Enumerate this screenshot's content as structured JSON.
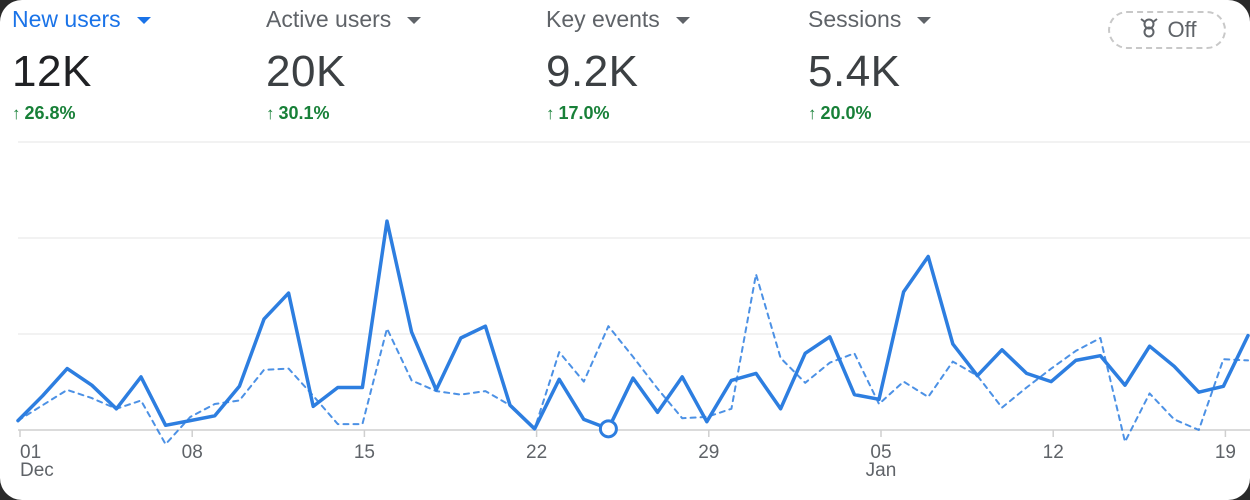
{
  "metrics": [
    {
      "label": "New users",
      "value": "12K",
      "change": "26.8%",
      "active": true
    },
    {
      "label": "Active users",
      "value": "20K",
      "change": "30.1%",
      "active": false
    },
    {
      "label": "Key events",
      "value": "9.2K",
      "change": "17.0%",
      "active": false
    },
    {
      "label": "Sessions",
      "value": "5.4K",
      "change": "20.0%",
      "active": false
    }
  ],
  "toggle": {
    "label": "Off",
    "icon": "compare-icon"
  },
  "colors": {
    "accent": "#1a73e8",
    "positive": "#188038",
    "line": "#2d7ee0"
  },
  "chart_data": {
    "type": "line",
    "x_tick_labels": [
      {
        "label": "01",
        "sub": "Dec"
      },
      {
        "label": "08",
        "sub": ""
      },
      {
        "label": "15",
        "sub": ""
      },
      {
        "label": "22",
        "sub": ""
      },
      {
        "label": "29",
        "sub": ""
      },
      {
        "label": "05",
        "sub": "Jan"
      },
      {
        "label": "12",
        "sub": ""
      },
      {
        "label": "19",
        "sub": ""
      }
    ],
    "grid": true,
    "legend": "none",
    "series": [
      {
        "style": "solid",
        "values": [
          8,
          29,
          52,
          38,
          18,
          45,
          4,
          8,
          12,
          37,
          94,
          116,
          20,
          36,
          36,
          177,
          83,
          34,
          78,
          88,
          21,
          1,
          43,
          9,
          1,
          44,
          15,
          45,
          7,
          42,
          48,
          18,
          65,
          79,
          30,
          26,
          117,
          147,
          73,
          46,
          68,
          48,
          41,
          59,
          63,
          38,
          71,
          54,
          32,
          37,
          80
        ]
      },
      {
        "style": "dotted",
        "values": [
          8,
          21,
          34,
          27,
          18,
          25,
          -12,
          11,
          22,
          25,
          51,
          52,
          29,
          5,
          5,
          86,
          42,
          33,
          30,
          33,
          21,
          1,
          66,
          41,
          88,
          62,
          35,
          10,
          11,
          18,
          132,
          61,
          40,
          57,
          65,
          22,
          41,
          28,
          58,
          46,
          19,
          36,
          52,
          67,
          78,
          -10,
          31,
          9,
          0,
          60,
          59
        ]
      }
    ],
    "highlight_index": 24
  }
}
